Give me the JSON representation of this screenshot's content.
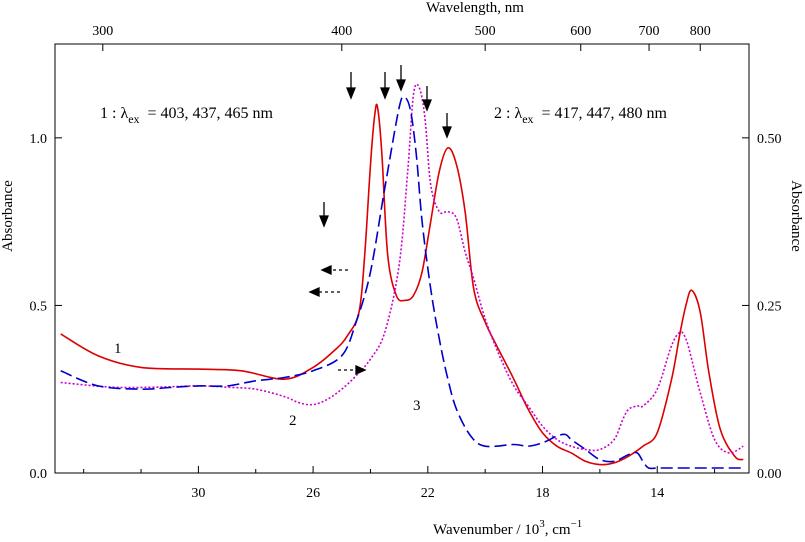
{
  "chart_data": {
    "type": "line",
    "title": "",
    "xlabel_bottom": "Wavenumber / 10",
    "xlabel_bottom_sup": "3",
    "xlabel_bottom_unit": "cm",
    "xlabel_bottom_unit_sup": "−1",
    "xlabel_top": "Wavelength, nm",
    "ylabel_left": "Absorbance",
    "ylabel_right": "Absorbance",
    "xlim": [
      35.0,
      10.8
    ],
    "ylim_left": [
      0.0,
      1.28
    ],
    "ylim_right": [
      0.0,
      0.64
    ],
    "bottom_ticks": [
      30,
      26,
      22,
      18,
      14
    ],
    "bottom_tick_labels": [
      "30",
      "26",
      "22",
      "18",
      "14"
    ],
    "top_ticks_nm": [
      300,
      400,
      500,
      600,
      700,
      800
    ],
    "top_tick_labels": [
      "300",
      "400",
      "500",
      "600",
      "700",
      "800"
    ],
    "left_ticks": [
      0.0,
      0.5,
      1.0
    ],
    "left_tick_labels": [
      "0.0",
      "0.5",
      "1.0"
    ],
    "right_ticks": [
      0.0,
      0.25,
      0.5
    ],
    "right_tick_labels": [
      "0.00",
      "0.25",
      "0.50"
    ],
    "annotations": {
      "label1_prefix": "1 :  λ",
      "label1_sub": "ex",
      "label1_values": "= 403, 437, 465 nm",
      "label2_prefix": "2 :  λ",
      "label2_sub": "ex",
      "label2_values": "= 417, 447, 480 nm",
      "curve_labels": [
        "1",
        "2",
        "3"
      ]
    },
    "series": [
      {
        "color": "#dd0000",
        "dash": "solid",
        "axis": "left",
        "x": [
          34.8,
          33.5,
          32.0,
          30.0,
          28.5,
          27.0,
          26.0,
          25.2,
          24.8,
          24.4,
          24.2,
          24.0,
          23.85,
          23.75,
          23.6,
          23.4,
          23.1,
          22.8,
          22.5,
          22.2,
          21.9,
          21.6,
          21.3,
          21.0,
          20.7,
          20.4,
          20.0,
          19.6,
          19.0,
          18.5,
          18.0,
          17.5,
          17.0,
          16.5,
          16.0,
          15.5,
          15.0,
          14.5,
          14.0,
          13.5,
          13.2,
          13.0,
          12.8,
          12.5,
          12.2,
          11.8,
          11.3,
          11.0
        ],
        "y": [
          0.415,
          0.35,
          0.315,
          0.31,
          0.305,
          0.28,
          0.315,
          0.37,
          0.41,
          0.48,
          0.65,
          0.92,
          1.07,
          1.09,
          0.95,
          0.65,
          0.53,
          0.515,
          0.53,
          0.6,
          0.75,
          0.9,
          0.97,
          0.92,
          0.78,
          0.55,
          0.45,
          0.38,
          0.28,
          0.19,
          0.12,
          0.08,
          0.06,
          0.035,
          0.025,
          0.03,
          0.05,
          0.08,
          0.12,
          0.28,
          0.42,
          0.5,
          0.545,
          0.48,
          0.3,
          0.13,
          0.05,
          0.04
        ]
      },
      {
        "color": "#cc00cc",
        "dash": "dotted",
        "axis": "right",
        "x": [
          34.8,
          33.0,
          31.5,
          30.0,
          29.0,
          28.0,
          27.0,
          26.5,
          26.0,
          25.5,
          25.0,
          24.5,
          24.0,
          23.5,
          23.0,
          22.7,
          22.5,
          22.3,
          22.1,
          21.9,
          21.6,
          21.3,
          21.0,
          20.7,
          20.4,
          20.0,
          19.5,
          19.0,
          18.5,
          18.0,
          17.5,
          17.0,
          16.5,
          16.0,
          15.5,
          15.2,
          15.0,
          14.7,
          14.5,
          14.0,
          13.5,
          13.2,
          13.0,
          12.8,
          12.5,
          12.0,
          11.5,
          11.0
        ],
        "y": [
          0.135,
          0.128,
          0.128,
          0.13,
          0.128,
          0.125,
          0.114,
          0.105,
          0.102,
          0.11,
          0.125,
          0.145,
          0.17,
          0.21,
          0.31,
          0.45,
          0.565,
          0.575,
          0.53,
          0.43,
          0.39,
          0.39,
          0.38,
          0.33,
          0.29,
          0.23,
          0.175,
          0.13,
          0.1,
          0.07,
          0.05,
          0.04,
          0.035,
          0.035,
          0.05,
          0.08,
          0.095,
          0.1,
          0.1,
          0.125,
          0.19,
          0.21,
          0.2,
          0.17,
          0.12,
          0.05,
          0.03,
          0.04
        ]
      },
      {
        "color": "#0000cc",
        "dash": "dashed",
        "axis": "left",
        "x": [
          34.8,
          33.5,
          32.0,
          31.0,
          30.0,
          29.0,
          28.0,
          27.0,
          26.0,
          25.0,
          24.5,
          24.0,
          23.5,
          23.0,
          22.8,
          22.6,
          22.4,
          22.2,
          21.9,
          21.6,
          21.3,
          21.0,
          20.5,
          20.0,
          19.0,
          18.5,
          18.0,
          17.5,
          17.2,
          17.0,
          16.5,
          16.0,
          15.5,
          15.0,
          14.7,
          14.5,
          14.3,
          14.0,
          13.5,
          13.0,
          12.5,
          12.0,
          11.5,
          11.0
        ],
        "y": [
          0.305,
          0.26,
          0.25,
          0.255,
          0.26,
          0.26,
          0.275,
          0.285,
          0.305,
          0.35,
          0.45,
          0.6,
          0.85,
          1.09,
          1.12,
          1.08,
          0.95,
          0.75,
          0.55,
          0.4,
          0.28,
          0.19,
          0.11,
          0.08,
          0.085,
          0.08,
          0.09,
          0.11,
          0.115,
          0.1,
          0.07,
          0.04,
          0.035,
          0.055,
          0.06,
          0.035,
          0.015,
          0.015,
          0.015,
          0.015,
          0.015,
          0.015,
          0.015,
          0.015
        ]
      }
    ]
  }
}
